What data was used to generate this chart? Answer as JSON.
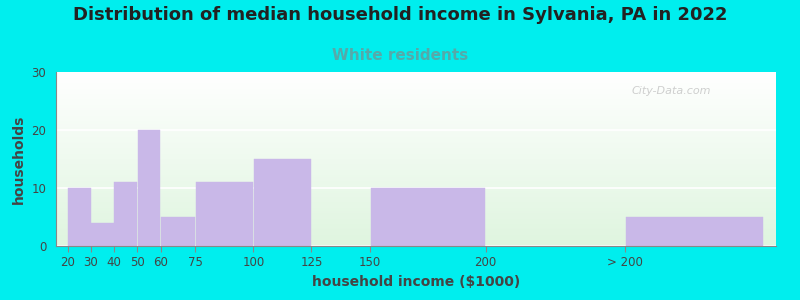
{
  "title": "Distribution of median household income in Sylvania, PA in 2022",
  "subtitle": "White residents",
  "xlabel": "household income ($1000)",
  "ylabel": "households",
  "tick_positions": [
    20,
    30,
    40,
    50,
    60,
    75,
    100,
    125,
    150,
    200,
    260
  ],
  "tick_labels": [
    "20",
    "30",
    "40",
    "50",
    "60",
    "75",
    "100",
    "125",
    "150",
    "200",
    "> 200"
  ],
  "bar_values": [
    10,
    4,
    11,
    20,
    5,
    11,
    15,
    0,
    10,
    0,
    5
  ],
  "bar_color": "#c9b8e8",
  "background_color": "#00EEEE",
  "ylim": [
    0,
    30
  ],
  "yticks": [
    0,
    10,
    20,
    30
  ],
  "title_fontsize": 13,
  "subtitle_fontsize": 11,
  "subtitle_color": "#55AAAA",
  "axis_label_fontsize": 10,
  "watermark": "City-Data.com"
}
